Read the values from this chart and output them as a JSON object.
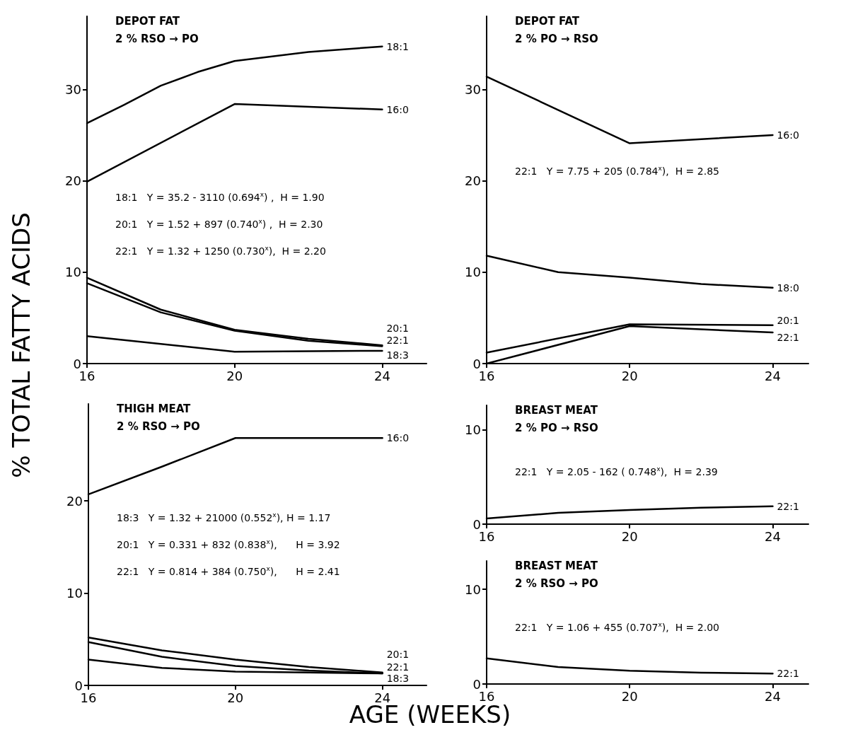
{
  "chart_data": [
    {
      "type": "line",
      "title": "DEPOT FAT",
      "subtitle": "2 % RSO → PO",
      "ylabel": "% TOTAL FATTY ACIDS",
      "xlim": [
        16,
        25.2
      ],
      "xticks": [
        16,
        20,
        24
      ],
      "ylim": [
        0,
        38
      ],
      "yticks": [
        0,
        10,
        20,
        30
      ],
      "grid": false,
      "marker": "none",
      "line_style": "solid",
      "annotations": [
        "18:1   Y = 35.2 - 3110 (0.694$^{x}$) ,  H = 1.90",
        "20:1   Y = 1.52 + 897 (0.740$^{x}$) ,  H = 2.30",
        "22:1   Y = 1.32 + 1250 (0.730$^{x}$),  H = 2.20"
      ],
      "series": [
        {
          "name": "18:1",
          "color": "#000000",
          "x": [
            16,
            17,
            18,
            19,
            20,
            22,
            24
          ],
          "values": [
            26.3,
            28.3,
            30.4,
            31.9,
            33.1,
            34.1,
            34.7
          ]
        },
        {
          "name": "16:0",
          "color": "#000000",
          "x": [
            16,
            20,
            24
          ],
          "values": [
            19.9,
            28.4,
            27.8
          ]
        },
        {
          "name": "20:1",
          "color": "#000000",
          "x": [
            16,
            18,
            20,
            22,
            24
          ],
          "values": [
            9.4,
            5.9,
            3.7,
            2.7,
            2.0
          ]
        },
        {
          "name": "22:1",
          "color": "#000000",
          "x": [
            16,
            18,
            20,
            22,
            24
          ],
          "values": [
            8.8,
            5.6,
            3.6,
            2.5,
            1.9
          ]
        },
        {
          "name": "18:3",
          "color": "#000000",
          "x": [
            16,
            20,
            24
          ],
          "values": [
            3.0,
            1.3,
            1.4
          ]
        }
      ]
    },
    {
      "type": "line",
      "title": "DEPOT FAT",
      "subtitle": "2 % PO → RSO",
      "xlim": [
        16,
        25
      ],
      "xticks": [
        16,
        20,
        24
      ],
      "ylim": [
        0,
        38
      ],
      "yticks": [
        0,
        10,
        20,
        30
      ],
      "grid": false,
      "marker": "none",
      "line_style": "solid",
      "annotations": [
        "22:1   Y = 7.75 + 205 (0.784$^{x}$),  H = 2.85"
      ],
      "series": [
        {
          "name": "16:0",
          "color": "#000000",
          "x": [
            16,
            20,
            24
          ],
          "values": [
            31.4,
            24.1,
            25.0
          ]
        },
        {
          "name": "18:0",
          "color": "#000000",
          "x": [
            16,
            18,
            20,
            22,
            24
          ],
          "values": [
            11.8,
            10.0,
            9.4,
            8.7,
            8.3
          ]
        },
        {
          "name": "20:1",
          "color": "#000000",
          "x": [
            16,
            20,
            24
          ],
          "values": [
            1.2,
            4.3,
            4.2
          ]
        },
        {
          "name": "22:1",
          "color": "#000000",
          "x": [
            16,
            20,
            24
          ],
          "values": [
            0,
            4.1,
            3.4
          ]
        }
      ]
    },
    {
      "type": "line",
      "title": "THIGH MEAT",
      "subtitle": "2 % RSO → PO",
      "xlabel": "AGE (WEEKS)",
      "xlim": [
        16,
        25.2
      ],
      "xticks": [
        16,
        20,
        24
      ],
      "ylim": [
        0,
        30.5
      ],
      "yticks": [
        0,
        10,
        20
      ],
      "grid": false,
      "marker": "none",
      "line_style": "solid",
      "annotations": [
        "18:3   Y = 1.32 + 21000 (0.552$^{x}$), H = 1.17",
        "20:1   Y = 0.331 + 832 (0.838$^{x}$),      H = 3.92",
        "22:1   Y = 0.814 + 384 (0.750$^{x}$),      H = 2.41"
      ],
      "series": [
        {
          "name": "16:0",
          "color": "#000000",
          "x": [
            16,
            18,
            20,
            24
          ],
          "values": [
            20.7,
            23.7,
            26.8,
            26.8
          ]
        },
        {
          "name": "20:1",
          "color": "#000000",
          "x": [
            16,
            18,
            20,
            22,
            24
          ],
          "values": [
            5.2,
            3.8,
            2.8,
            2.0,
            1.4
          ]
        },
        {
          "name": "22:1",
          "color": "#000000",
          "x": [
            16,
            18,
            20,
            22,
            24
          ],
          "values": [
            4.7,
            3.1,
            2.1,
            1.6,
            1.3
          ]
        },
        {
          "name": "18:3",
          "color": "#000000",
          "x": [
            16,
            18,
            20,
            22,
            24
          ],
          "values": [
            2.8,
            1.9,
            1.5,
            1.4,
            1.3
          ]
        }
      ]
    },
    {
      "type": "line",
      "title": "BREAST MEAT",
      "subtitle": "2 % PO → RSO",
      "xlim": [
        16,
        25
      ],
      "xticks": [
        16,
        20,
        24
      ],
      "ylim": [
        0,
        12.6
      ],
      "yticks": [
        0,
        10
      ],
      "grid": false,
      "marker": "none",
      "line_style": "solid",
      "annotations": [
        "22:1   Y = 2.05 - 162 ( 0.748$^{x}$),  H = 2.39"
      ],
      "series": [
        {
          "name": "22:1",
          "color": "#000000",
          "x": [
            16,
            18,
            20,
            22,
            24
          ],
          "values": [
            0.6,
            1.2,
            1.5,
            1.75,
            1.9
          ]
        }
      ]
    },
    {
      "type": "line",
      "title": "BREAST MEAT",
      "subtitle": "2 % RSO → PO",
      "xlim": [
        16,
        25
      ],
      "xticks": [
        16,
        20,
        24
      ],
      "ylim": [
        0,
        13
      ],
      "yticks": [
        0,
        10
      ],
      "grid": false,
      "marker": "none",
      "line_style": "solid",
      "annotations": [
        "22:1   Y = 1.06 + 455 (0.707$^{x}$),  H = 2.00"
      ],
      "series": [
        {
          "name": "22:1",
          "color": "#000000",
          "x": [
            16,
            18,
            20,
            22,
            24
          ],
          "values": [
            2.7,
            1.8,
            1.4,
            1.2,
            1.1
          ]
        }
      ]
    }
  ]
}
